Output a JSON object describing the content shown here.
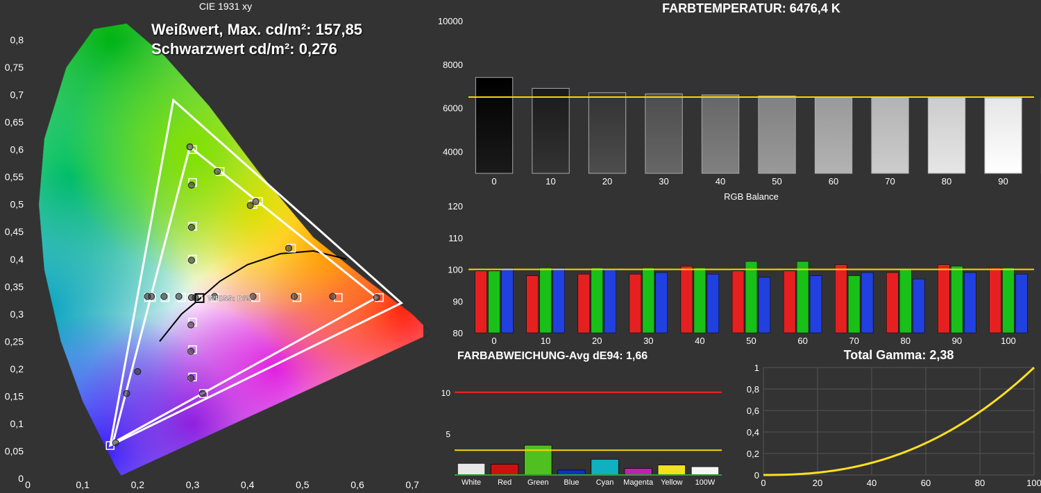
{
  "background_color": "#333333",
  "cie": {
    "title": "CIE 1931 xy",
    "title_fontsize": 14,
    "overlay_lines": [
      "Weißwert, Max. cd/m²: 157,85",
      "Schwarzwert cd/m²: 0,276"
    ],
    "overlay_fontsize": 22,
    "whitepoint_label": "WEISS: D65",
    "whitepoint_fontsize": 11,
    "x_axis": {
      "min": 0,
      "max": 0.72,
      "ticks": [
        0,
        0.1,
        0.2,
        0.3,
        0.4,
        0.5,
        0.6,
        0.7
      ],
      "label_fontsize": 14
    },
    "y_axis": {
      "min": 0,
      "max": 0.85,
      "ticks": [
        0,
        0.05,
        0.1,
        0.15,
        0.2,
        0.25,
        0.3,
        0.35,
        0.4,
        0.45,
        0.5,
        0.55,
        0.6,
        0.65,
        0.7,
        0.75,
        0.8
      ],
      "label_fontsize": 14
    },
    "triangle_outer": [
      [
        0.15,
        0.06
      ],
      [
        0.68,
        0.32
      ],
      [
        0.265,
        0.69
      ]
    ],
    "triangle_inner": [
      [
        0.155,
        0.065
      ],
      [
        0.635,
        0.33
      ],
      [
        0.295,
        0.605
      ]
    ],
    "triangle_color": "#ffffff",
    "triangle_width": 3,
    "locus_curve_color": "#000000",
    "locus_curve_width": 2,
    "locus_curve": [
      [
        0.17,
        0.005
      ],
      [
        0.16,
        0.02
      ],
      [
        0.14,
        0.06
      ],
      [
        0.1,
        0.14
      ],
      [
        0.06,
        0.25
      ],
      [
        0.03,
        0.38
      ],
      [
        0.02,
        0.5
      ],
      [
        0.03,
        0.62
      ],
      [
        0.07,
        0.75
      ],
      [
        0.12,
        0.82
      ],
      [
        0.18,
        0.83
      ],
      [
        0.25,
        0.77
      ],
      [
        0.33,
        0.68
      ],
      [
        0.42,
        0.56
      ],
      [
        0.52,
        0.44
      ],
      [
        0.62,
        0.36
      ],
      [
        0.7,
        0.3
      ],
      [
        0.735,
        0.265
      ]
    ],
    "planckian_curve": [
      [
        0.24,
        0.25
      ],
      [
        0.28,
        0.3
      ],
      [
        0.31,
        0.325
      ],
      [
        0.35,
        0.36
      ],
      [
        0.4,
        0.39
      ],
      [
        0.46,
        0.41
      ],
      [
        0.52,
        0.415
      ],
      [
        0.58,
        0.4
      ]
    ],
    "target_squares": [
      [
        0.64,
        0.33
      ],
      [
        0.3,
        0.6
      ],
      [
        0.15,
        0.06
      ],
      [
        0.225,
        0.33
      ],
      [
        0.32,
        0.155
      ],
      [
        0.42,
        0.505
      ],
      [
        0.565,
        0.33
      ],
      [
        0.49,
        0.33
      ],
      [
        0.415,
        0.33
      ],
      [
        0.34,
        0.33
      ],
      [
        0.31,
        0.33
      ],
      [
        0.28,
        0.33
      ],
      [
        0.25,
        0.33
      ],
      [
        0.22,
        0.33
      ],
      [
        0.3,
        0.54
      ],
      [
        0.3,
        0.46
      ],
      [
        0.3,
        0.4
      ],
      [
        0.3,
        0.33
      ],
      [
        0.3,
        0.285
      ],
      [
        0.3,
        0.235
      ],
      [
        0.3,
        0.185
      ],
      [
        0.48,
        0.42
      ],
      [
        0.41,
        0.5
      ],
      [
        0.35,
        0.56
      ]
    ],
    "measured_circles": [
      [
        0.635,
        0.33
      ],
      [
        0.295,
        0.605
      ],
      [
        0.16,
        0.065
      ],
      [
        0.225,
        0.332
      ],
      [
        0.318,
        0.155
      ],
      [
        0.415,
        0.505
      ],
      [
        0.555,
        0.332
      ],
      [
        0.485,
        0.332
      ],
      [
        0.41,
        0.332
      ],
      [
        0.34,
        0.332
      ],
      [
        0.305,
        0.33
      ],
      [
        0.275,
        0.332
      ],
      [
        0.248,
        0.332
      ],
      [
        0.218,
        0.332
      ],
      [
        0.298,
        0.535
      ],
      [
        0.298,
        0.458
      ],
      [
        0.298,
        0.398
      ],
      [
        0.298,
        0.33
      ],
      [
        0.297,
        0.28
      ],
      [
        0.297,
        0.232
      ],
      [
        0.297,
        0.183
      ],
      [
        0.475,
        0.42
      ],
      [
        0.405,
        0.498
      ],
      [
        0.345,
        0.56
      ],
      [
        0.18,
        0.155
      ],
      [
        0.2,
        0.195
      ]
    ],
    "square_size": 11,
    "circle_radius": 4.5
  },
  "colortemp": {
    "title": "FARBTEMPERATUR: 6476,4 K",
    "title_fontsize": 18,
    "x_ticks": [
      0,
      10,
      20,
      30,
      40,
      50,
      60,
      70,
      80,
      90,
      100
    ],
    "y_ticks": [
      4000,
      6000,
      8000,
      10000
    ],
    "y_min": 3000,
    "y_max": 10000,
    "values": [
      7400,
      6900,
      6700,
      6650,
      6600,
      6550,
      6500,
      6480,
      6470,
      6465,
      6460
    ],
    "bar_gray_start": [
      "#000000",
      "#1a1a1a",
      "#333333",
      "#4d4d4d",
      "#666666",
      "#808080",
      "#999999",
      "#b3b3b3",
      "#cccccc",
      "#e6e6e6",
      "#ffffff"
    ],
    "bar_gray_end": [
      "#1a1a1a",
      "#333333",
      "#4d4d4d",
      "#666666",
      "#808080",
      "#999999",
      "#b3b3b3",
      "#cccccc",
      "#e6e6e6",
      "#ffffff",
      "#ffffff"
    ],
    "reference_line": 6500,
    "reference_color": "#ffd400",
    "label_fontsize": 13,
    "bar_border": "#aaaaaa"
  },
  "rgb_balance": {
    "title": "RGB Balance",
    "title_fontsize": 13,
    "x_ticks": [
      0,
      10,
      20,
      30,
      40,
      50,
      60,
      70,
      80,
      90,
      100
    ],
    "y_ticks": [
      80,
      90,
      100,
      110,
      120
    ],
    "y_min": 80,
    "y_max": 120,
    "reference_line": 100,
    "reference_color": "#ffd400",
    "colors": {
      "r": "#e62020",
      "g": "#18c018",
      "b": "#2040e0"
    },
    "data": [
      {
        "r": 99.5,
        "g": 99.5,
        "b": 100.5
      },
      {
        "r": 98.0,
        "g": 100.5,
        "b": 100.5
      },
      {
        "r": 98.5,
        "g": 100.5,
        "b": 100.0
      },
      {
        "r": 98.5,
        "g": 100.5,
        "b": 99.0
      },
      {
        "r": 101.0,
        "g": 100.5,
        "b": 98.5
      },
      {
        "r": 99.5,
        "g": 102.5,
        "b": 97.5
      },
      {
        "r": 99.5,
        "g": 102.5,
        "b": 98.0
      },
      {
        "r": 101.5,
        "g": 98.0,
        "b": 99.0
      },
      {
        "r": 99.0,
        "g": 100.0,
        "b": 97.0
      },
      {
        "r": 101.5,
        "g": 101.0,
        "b": 99.0
      },
      {
        "r": 100.5,
        "g": 100.5,
        "b": 98.5
      }
    ],
    "label_fontsize": 13,
    "bar_gap": 2
  },
  "de94": {
    "title": "FARBABWEICHUNG-Avg dE94: 1,66",
    "title_fontsize": 16,
    "categories": [
      "White",
      "Red",
      "Green",
      "Blue",
      "Cyan",
      "Magenta",
      "Yellow",
      "100W"
    ],
    "values": [
      1.4,
      1.3,
      3.6,
      0.6,
      1.9,
      0.8,
      1.2,
      1.0
    ],
    "colors": [
      "#e8e8e8",
      "#d01010",
      "#50c020",
      "#1030c0",
      "#10b0c0",
      "#c020b0",
      "#f0e020",
      "#f5f5f5"
    ],
    "y_ticks": [
      5,
      10
    ],
    "y_min": 0,
    "y_max": 13,
    "ref_lines": [
      {
        "y": 3.0,
        "color": "#ffd400"
      },
      {
        "y": 10.0,
        "color": "#ff2020"
      }
    ],
    "bottom_line_color": "#30a030",
    "label_fontsize": 12
  },
  "gamma": {
    "title": "Total Gamma: 2,38",
    "title_fontsize": 18,
    "x_ticks": [
      0,
      20,
      40,
      60,
      80,
      100
    ],
    "y_ticks": [
      0,
      0.2,
      0.4,
      0.6,
      0.8,
      1
    ],
    "x_min": 0,
    "x_max": 100,
    "y_min": 0,
    "y_max": 1,
    "curve_color": "#ffe020",
    "curve_width": 3,
    "gamma_value": 2.38,
    "label_fontsize": 13
  }
}
